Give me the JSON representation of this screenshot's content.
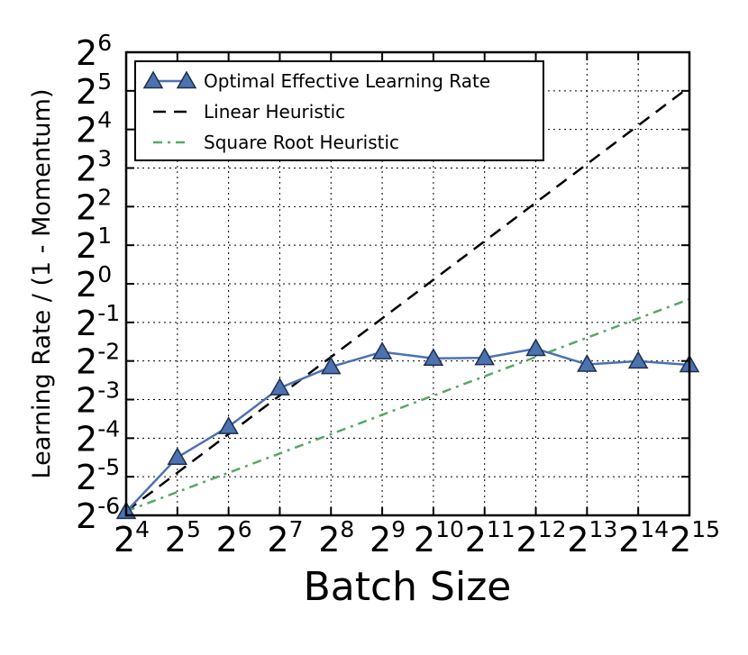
{
  "chart_data": {
    "type": "line",
    "xlabel": "Batch Size",
    "ylabel": "Learning Rate / (1 - Momentum)",
    "x_scale": "log2",
    "y_scale": "log2",
    "xlim": [
      16,
      32768
    ],
    "ylim": [
      0.015625,
      64
    ],
    "x_ticks": [
      {
        "base": "2",
        "exp": "4"
      },
      {
        "base": "2",
        "exp": "5"
      },
      {
        "base": "2",
        "exp": "6"
      },
      {
        "base": "2",
        "exp": "7"
      },
      {
        "base": "2",
        "exp": "8"
      },
      {
        "base": "2",
        "exp": "9"
      },
      {
        "base": "2",
        "exp": "10"
      },
      {
        "base": "2",
        "exp": "11"
      },
      {
        "base": "2",
        "exp": "12"
      },
      {
        "base": "2",
        "exp": "13"
      },
      {
        "base": "2",
        "exp": "14"
      },
      {
        "base": "2",
        "exp": "15"
      }
    ],
    "y_ticks": [
      {
        "base": "2",
        "exp": "-6"
      },
      {
        "base": "2",
        "exp": "-5"
      },
      {
        "base": "2",
        "exp": "-4"
      },
      {
        "base": "2",
        "exp": "-3"
      },
      {
        "base": "2",
        "exp": "-2"
      },
      {
        "base": "2",
        "exp": "-1"
      },
      {
        "base": "2",
        "exp": "0"
      },
      {
        "base": "2",
        "exp": "1"
      },
      {
        "base": "2",
        "exp": "2"
      },
      {
        "base": "2",
        "exp": "3"
      },
      {
        "base": "2",
        "exp": "4"
      },
      {
        "base": "2",
        "exp": "5"
      },
      {
        "base": "2",
        "exp": "6"
      }
    ],
    "x_tick_values": [
      16,
      32,
      64,
      128,
      256,
      512,
      1024,
      2048,
      4096,
      8192,
      16384,
      32768
    ],
    "y_tick_values": [
      0.015625,
      0.03125,
      0.0625,
      0.125,
      0.25,
      0.5,
      1,
      2,
      4,
      8,
      16,
      32,
      64
    ],
    "grid": true,
    "legend_position": "top-left",
    "series": [
      {
        "name": "Optimal Effective Learning Rate",
        "style": "solid-line-triangle-markers",
        "color": "#4c72b0",
        "x": [
          16,
          32,
          64,
          128,
          256,
          512,
          1024,
          2048,
          4096,
          8192,
          16384,
          32768
        ],
        "y": [
          0.0167,
          0.0442,
          0.0768,
          0.154,
          0.225,
          0.294,
          0.262,
          0.265,
          0.312,
          0.235,
          0.249,
          0.233
        ]
      },
      {
        "name": "Linear Heuristic",
        "style": "dashed",
        "color": "#000000",
        "x": [
          16,
          32768
        ],
        "y": [
          0.0168,
          34.4
        ]
      },
      {
        "name": "Square Root Heuristic",
        "style": "dash-dot",
        "color": "#55a868",
        "x": [
          16,
          32768
        ],
        "y": [
          0.0168,
          0.76
        ]
      }
    ]
  }
}
